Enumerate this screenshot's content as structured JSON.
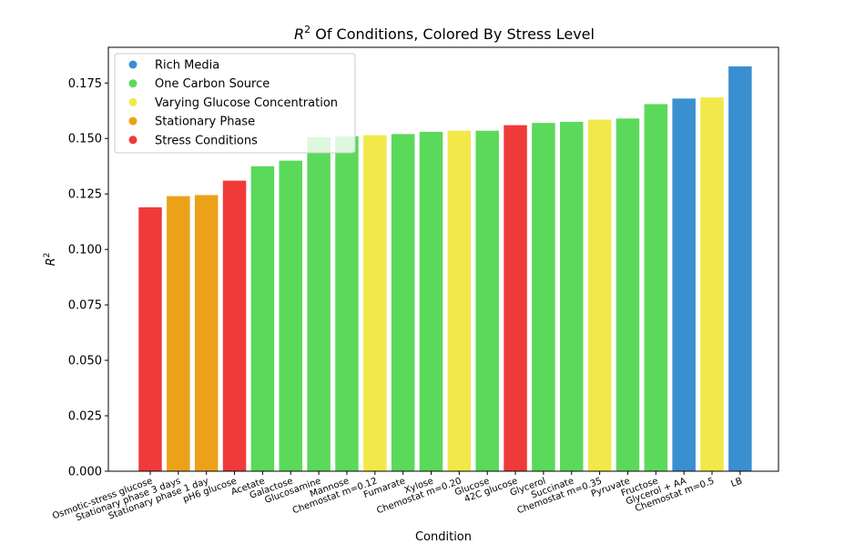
{
  "chart_data": {
    "type": "bar",
    "title_prefix": "R",
    "title_sup": "2",
    "title_suffix": " Of Conditions, Colored By Stress Level",
    "xlabel": "Condition",
    "ylabel_main": "R",
    "ylabel_sup": "2",
    "ylim": [
      0,
      0.1825
    ],
    "yticks": [
      "0.000",
      "0.025",
      "0.050",
      "0.075",
      "0.100",
      "0.125",
      "0.150",
      "0.175"
    ],
    "grid": false,
    "legend_placement": "top-left",
    "legend": [
      {
        "label": "Rich Media",
        "color": "#3a8fd0"
      },
      {
        "label": "One Carbon Source",
        "color": "#5bd95b"
      },
      {
        "label": "Varying Glucose Concentration",
        "color": "#f2e84a"
      },
      {
        "label": "Stationary Phase",
        "color": "#eba219"
      },
      {
        "label": "Stress Conditions",
        "color": "#ef3a3a"
      }
    ],
    "categories": [
      "Osmotic-stress glucose",
      "Stationary phase 3 days",
      "Stationary phase 1 day",
      "pH6 glucose",
      "Acetate",
      "Galactose",
      "Glucosamine",
      "Mannose",
      "Chemostat m=0.12",
      "Fumarate",
      "Xylose",
      "Chemostat m=0.20",
      "Glucose",
      "42C glucose",
      "Glycerol",
      "Succinate",
      "Chemostat m=0.35",
      "Pyruvate",
      "Fructose",
      "Glycerol + AA",
      "Chemostat m=0.5",
      "LB"
    ],
    "values": [
      0.119,
      0.124,
      0.1245,
      0.131,
      0.1375,
      0.14,
      0.1505,
      0.151,
      0.1515,
      0.152,
      0.153,
      0.1535,
      0.1535,
      0.156,
      0.157,
      0.1575,
      0.1585,
      0.159,
      0.1655,
      0.168,
      0.1685,
      0.1825
    ],
    "groups": [
      "Stress Conditions",
      "Stationary Phase",
      "Stationary Phase",
      "Stress Conditions",
      "One Carbon Source",
      "One Carbon Source",
      "One Carbon Source",
      "One Carbon Source",
      "Varying Glucose Concentration",
      "One Carbon Source",
      "One Carbon Source",
      "Varying Glucose Concentration",
      "One Carbon Source",
      "Stress Conditions",
      "One Carbon Source",
      "One Carbon Source",
      "Varying Glucose Concentration",
      "One Carbon Source",
      "One Carbon Source",
      "Rich Media",
      "Varying Glucose Concentration",
      "Rich Media"
    ]
  }
}
